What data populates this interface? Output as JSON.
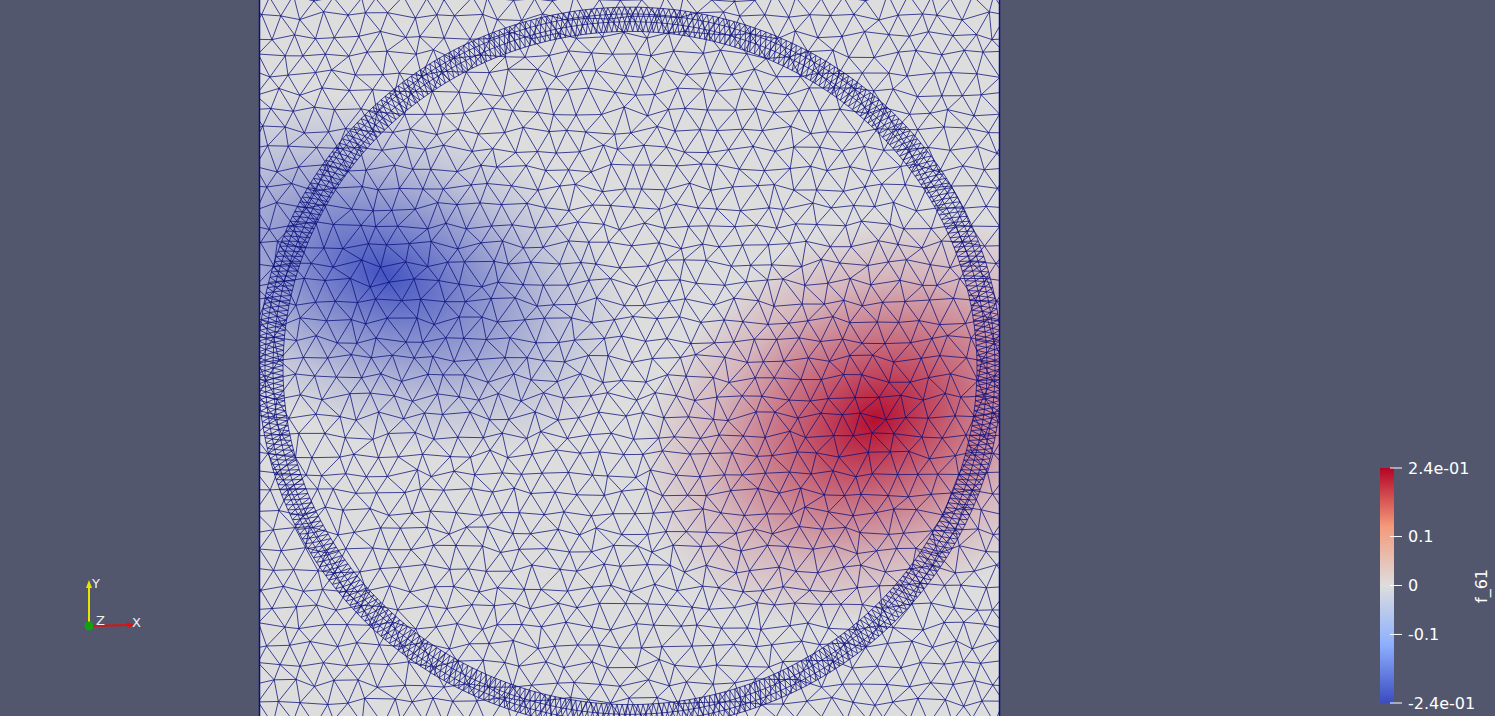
{
  "chart_data": {
    "type": "field",
    "field_extremes": [
      -0.24,
      0.24
    ],
    "colorbar": {
      "title": "f_61",
      "range": [
        -0.24,
        0.24
      ],
      "ticks": [
        {
          "value": 0.24,
          "label": "2.4e-01"
        },
        0.1,
        0,
        -0.1,
        {
          "value": -0.24,
          "label": "-2.4e-01"
        }
      ]
    },
    "orientation_axes": [
      "X",
      "Y",
      "Z"
    ],
    "grid": true,
    "tick_labels": false
  }
}
